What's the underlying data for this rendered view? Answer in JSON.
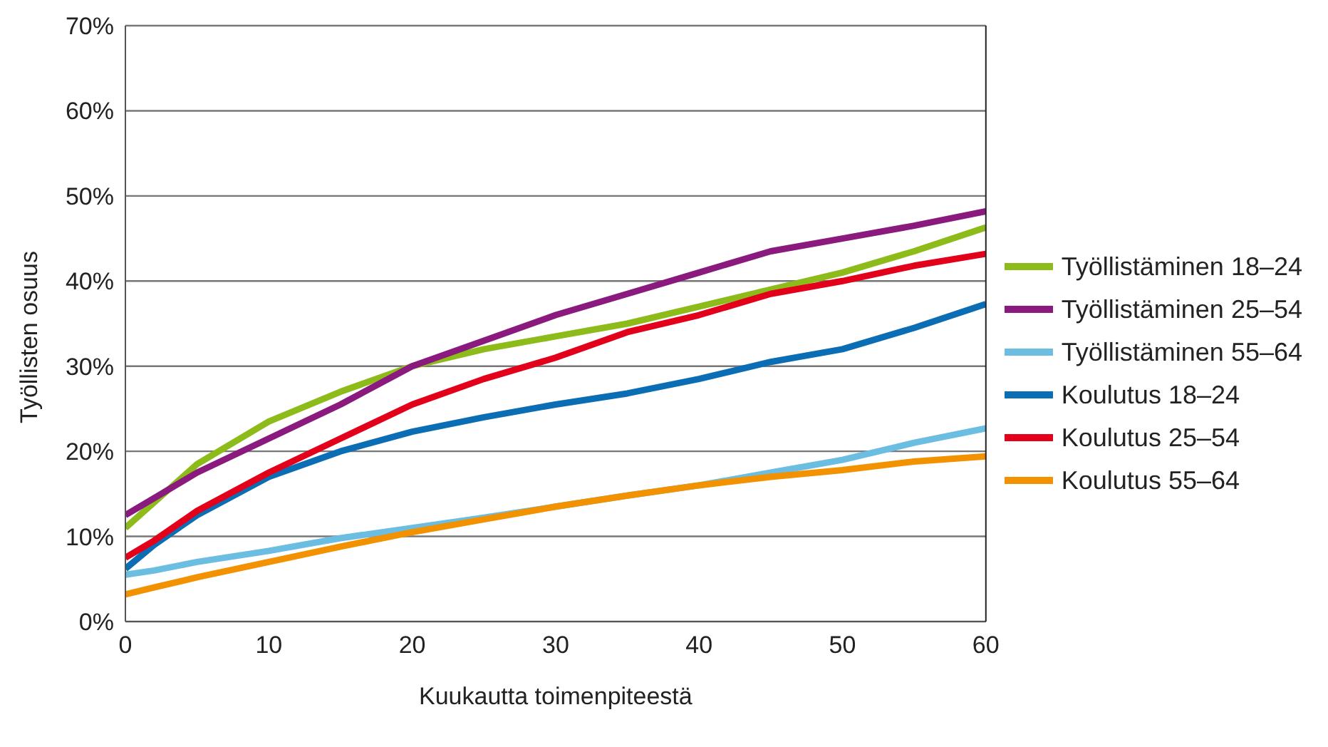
{
  "chart_data": {
    "type": "line",
    "xlabel": "Kuukautta toimenpiteestä",
    "ylabel": "Työllisten osuus",
    "x": [
      0,
      2,
      5,
      10,
      15,
      20,
      25,
      30,
      35,
      40,
      45,
      50,
      55,
      60
    ],
    "series": [
      {
        "name": "Työllistäminen 18–24",
        "color": "#8dbb1a",
        "values": [
          11,
          14,
          18.5,
          23.5,
          27,
          30,
          32,
          33.5,
          35,
          37,
          39,
          41,
          43.5,
          46.3
        ]
      },
      {
        "name": "Työllistäminen 25–54",
        "color": "#8b1a7e",
        "values": [
          12.5,
          14.5,
          17.5,
          21.5,
          25.5,
          30,
          33,
          36,
          38.5,
          41,
          43.5,
          45,
          46.5,
          48.2
        ]
      },
      {
        "name": "Työllistäminen 55–64",
        "color": "#6bbde2",
        "values": [
          5.5,
          6,
          7,
          8.3,
          9.8,
          11,
          12.2,
          13.5,
          14.8,
          16,
          17.5,
          19,
          21,
          22.7
        ]
      },
      {
        "name": "Koulutus 18–24",
        "color": "#0b6eb5",
        "values": [
          6.2,
          9,
          12.5,
          17,
          20,
          22.3,
          24,
          25.5,
          26.8,
          28.5,
          30.5,
          32,
          34.5,
          37.3
        ]
      },
      {
        "name": "Koulutus 25–54",
        "color": "#e3001b",
        "values": [
          7.5,
          9.5,
          13,
          17.5,
          21.5,
          25.5,
          28.5,
          31,
          34,
          36,
          38.5,
          40,
          41.8,
          43.2
        ]
      },
      {
        "name": "Koulutus 55–64",
        "color": "#f39200",
        "values": [
          3.2,
          4,
          5.2,
          7,
          8.8,
          10.5,
          12,
          13.5,
          14.8,
          16,
          17,
          17.8,
          18.8,
          19.4
        ]
      }
    ],
    "xlim": [
      0,
      60
    ],
    "xticks": [
      0,
      10,
      20,
      30,
      40,
      50,
      60
    ],
    "ylim": [
      0,
      70
    ],
    "yticks": [
      {
        "value": 0,
        "label": "0%"
      },
      {
        "value": 10,
        "label": "10%"
      },
      {
        "value": 20,
        "label": "20%"
      },
      {
        "value": 30,
        "label": "30%"
      },
      {
        "value": 40,
        "label": "40%"
      },
      {
        "value": 50,
        "label": "50%"
      },
      {
        "value": 60,
        "label": "60%"
      },
      {
        "value": 70,
        "label": "70%"
      }
    ],
    "grid": "y",
    "legend": "right",
    "marker": "none",
    "line_style": "solid"
  }
}
